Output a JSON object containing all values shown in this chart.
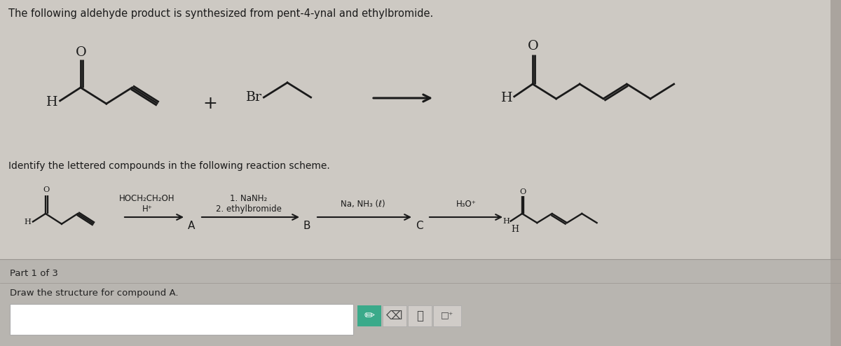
{
  "title": "The following aldehyde product is synthesized from pent-4-ynal and ethylbromide.",
  "subtitle": "Identify the lettered compounds in the following reaction scheme.",
  "part_label": "Part 1 of 3",
  "draw_label": "Draw the structure for compound A.",
  "bg_color": "#cdc9c3",
  "upper_bg": "#cdc9c3",
  "lower_panel_color": "#b8b4b0",
  "line_color": "#1a1a1a",
  "text_color": "#1a1a1a",
  "title_fontsize": 10.5,
  "subtitle_fontsize": 10,
  "mol_lw": 2.0,
  "scheme_lw": 1.7
}
